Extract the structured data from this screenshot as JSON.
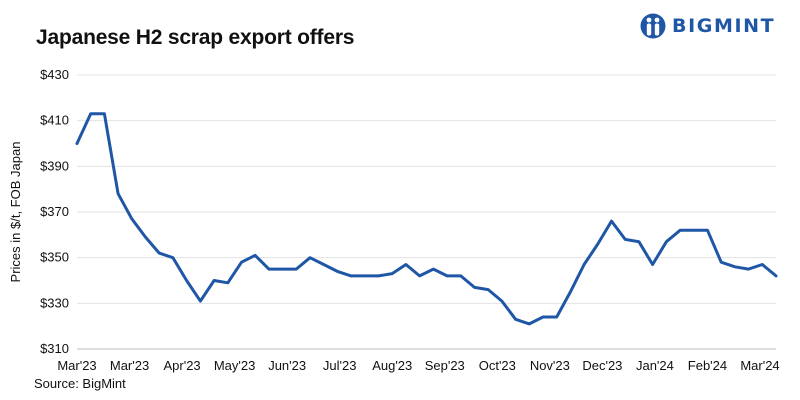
{
  "title": "Japanese H2 scrap export offers",
  "brand": {
    "name": "BIGMINT",
    "color": "#1f57a6",
    "icon": "people-logo-icon"
  },
  "source": "Source: BigMint",
  "chart_data": {
    "type": "line",
    "title": "Japanese H2 scrap export offers",
    "ylabel": "Prices in $/t, FOB Japan",
    "xlabel": "",
    "ylim": [
      310,
      430
    ],
    "yticks": [
      310,
      330,
      350,
      370,
      390,
      410,
      430
    ],
    "ytick_labels": [
      "$310",
      "$330",
      "$350",
      "$370",
      "$390",
      "$410",
      "$430"
    ],
    "grid": true,
    "legend": "none",
    "line_color": "#1f57a6",
    "x_tick_labels": [
      "Mar'23",
      "Mar'23",
      "Apr'23",
      "May'23",
      "Jun'23",
      "Jul'23",
      "Aug'23",
      "Sep'23",
      "Oct'23",
      "Nov'23",
      "Dec'23",
      "Jan'24",
      "Feb'24",
      "Mar'24"
    ],
    "series": [
      {
        "values": [
          400,
          413,
          413,
          378,
          367,
          359,
          352,
          350,
          340,
          331,
          340,
          339,
          348,
          351,
          345,
          345,
          345,
          350,
          347,
          344,
          342,
          342,
          342,
          343,
          347,
          342,
          345,
          342,
          342,
          337,
          336,
          331,
          323,
          321,
          324,
          324,
          335,
          347,
          356,
          366,
          358,
          357,
          347,
          357,
          362,
          362,
          362,
          348,
          346,
          345,
          347,
          342
        ]
      }
    ]
  }
}
